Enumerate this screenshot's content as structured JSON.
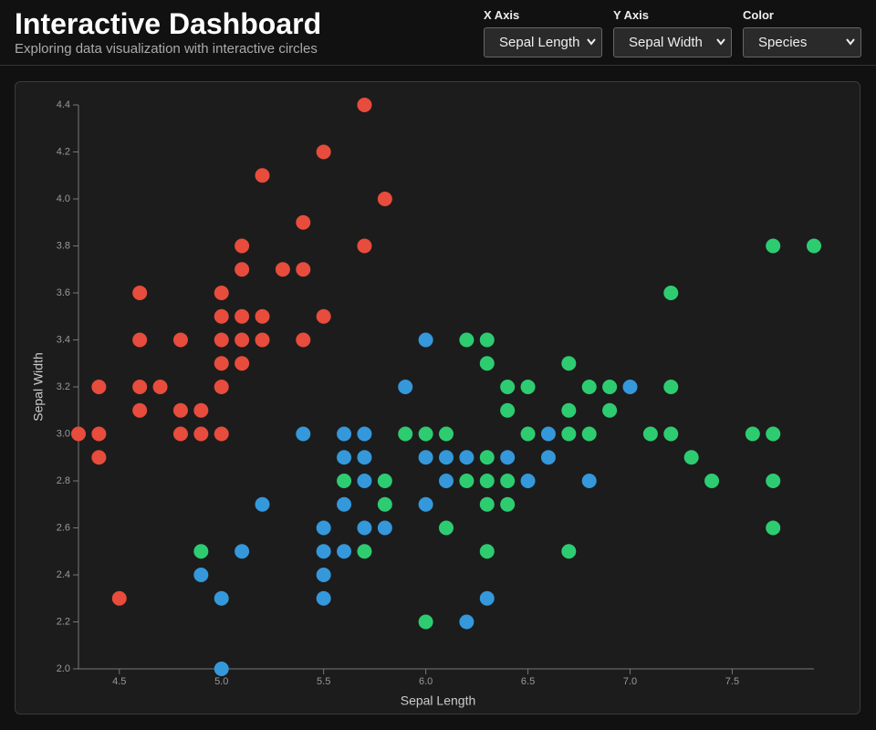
{
  "header": {
    "title": "Interactive Dashboard",
    "subtitle": "Exploring data visualization with interactive circles"
  },
  "controls": [
    {
      "label": "X Axis",
      "value": "Sepal Length"
    },
    {
      "label": "Y Axis",
      "value": "Sepal Width"
    },
    {
      "label": "Color",
      "value": "Species"
    }
  ],
  "chart_data": {
    "type": "scatter",
    "xlabel": "Sepal Length",
    "ylabel": "Sepal Width",
    "xlim": [
      4.3,
      7.9
    ],
    "ylim": [
      2.0,
      4.4
    ],
    "xticks": [
      4.5,
      {
        "value": 5,
        "label": "5.0"
      },
      5.5,
      {
        "value": 6,
        "label": "6.0"
      },
      6.5,
      {
        "value": 7,
        "label": "7.0"
      },
      7.5
    ],
    "yticks": [
      {
        "value": 2,
        "label": "2.0"
      },
      2.2,
      2.4,
      2.6,
      2.8,
      {
        "value": 3,
        "label": "3.0"
      },
      3.2,
      3.4,
      3.6,
      3.8,
      {
        "value": 4,
        "label": "4.0"
      },
      4.2,
      4.4
    ],
    "series": [
      {
        "color": "#e74c3c",
        "x": [
          4.3,
          4.4,
          4.4,
          4.4,
          4.5,
          4.6,
          4.6,
          4.6,
          4.6,
          4.7,
          4.8,
          4.8,
          4.8,
          4.9,
          4.9,
          5.0,
          5.0,
          5.0,
          5.0,
          5.0,
          5.0,
          5.1,
          5.1,
          5.1,
          5.1,
          5.1,
          5.2,
          5.2,
          5.2,
          5.3,
          5.4,
          5.4,
          5.4,
          5.5,
          5.5,
          5.7,
          5.7,
          5.8
        ],
        "y": [
          3.0,
          3.2,
          3.0,
          2.9,
          2.3,
          3.6,
          3.4,
          3.2,
          3.1,
          3.2,
          3.4,
          3.1,
          3.0,
          3.1,
          3.0,
          3.6,
          3.5,
          3.4,
          3.3,
          3.2,
          3.0,
          3.8,
          3.7,
          3.5,
          3.4,
          3.3,
          4.1,
          3.5,
          3.4,
          3.7,
          3.9,
          3.7,
          3.4,
          4.2,
          3.5,
          4.4,
          3.8,
          4.0
        ]
      },
      {
        "color": "#3498db",
        "x": [
          4.9,
          5.0,
          5.0,
          5.1,
          5.2,
          5.4,
          5.5,
          5.5,
          5.5,
          5.5,
          5.6,
          5.6,
          5.6,
          5.6,
          5.7,
          5.7,
          5.7,
          5.7,
          5.8,
          5.9,
          6.0,
          6.0,
          6.0,
          6.1,
          6.1,
          6.2,
          6.2,
          6.3,
          6.4,
          6.5,
          6.6,
          6.6,
          6.8,
          7.0
        ],
        "y": [
          2.4,
          2.3,
          2.0,
          2.5,
          2.7,
          3.0,
          2.6,
          2.5,
          2.4,
          2.3,
          3.0,
          2.9,
          2.7,
          2.5,
          3.0,
          2.9,
          2.8,
          2.6,
          2.6,
          3.2,
          3.4,
          2.9,
          2.7,
          2.9,
          2.8,
          2.9,
          2.2,
          2.3,
          2.9,
          2.8,
          3.0,
          2.9,
          2.8,
          3.2
        ]
      },
      {
        "color": "#2ecc71",
        "x": [
          4.9,
          5.6,
          5.7,
          5.8,
          5.8,
          5.9,
          6.0,
          6.0,
          6.1,
          6.1,
          6.2,
          6.2,
          6.3,
          6.3,
          6.3,
          6.3,
          6.3,
          6.3,
          6.4,
          6.4,
          6.4,
          6.4,
          6.5,
          6.5,
          6.7,
          6.7,
          6.7,
          6.7,
          6.8,
          6.8,
          6.9,
          6.9,
          7.1,
          7.2,
          7.2,
          7.2,
          7.3,
          7.4,
          7.6,
          7.7,
          7.7,
          7.7,
          7.7,
          7.9
        ],
        "y": [
          2.5,
          2.8,
          2.5,
          2.8,
          2.7,
          3.0,
          3.0,
          2.2,
          3.0,
          2.6,
          3.4,
          2.8,
          3.4,
          3.3,
          2.9,
          2.8,
          2.7,
          2.5,
          3.2,
          3.1,
          2.8,
          2.7,
          3.2,
          3.0,
          3.3,
          3.1,
          3.0,
          2.5,
          3.2,
          3.0,
          3.2,
          3.1,
          3.0,
          3.6,
          3.2,
          3.0,
          2.9,
          2.8,
          3.0,
          3.8,
          3.0,
          2.8,
          2.6,
          3.8
        ]
      }
    ]
  }
}
